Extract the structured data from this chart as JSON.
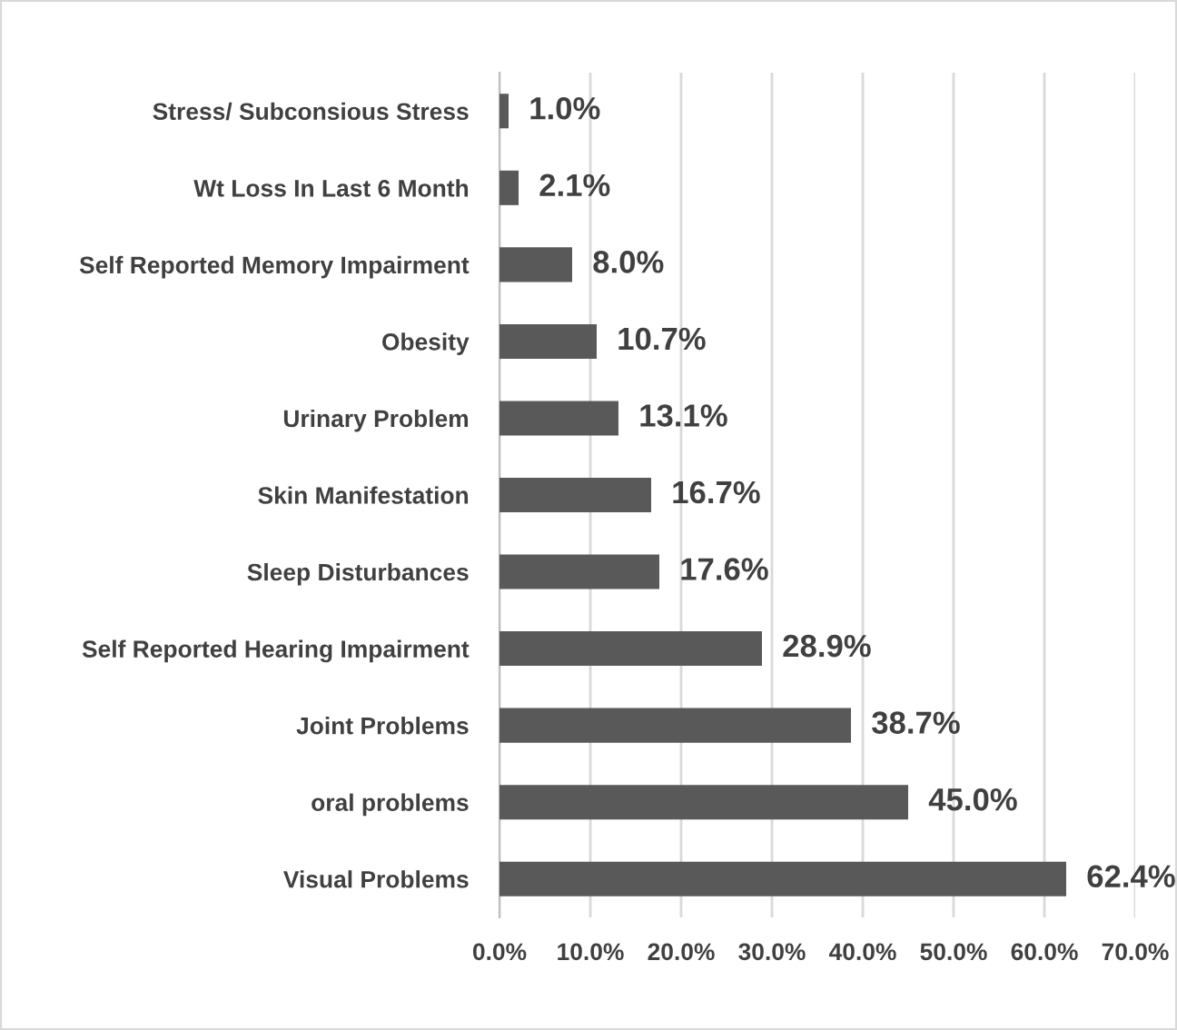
{
  "chart_data": {
    "type": "bar",
    "orientation": "horizontal",
    "categories": [
      "Stress/ Subconsious Stress",
      "Wt Loss In Last 6 Month",
      "Self Reported Memory Impairment",
      "Obesity",
      "Urinary Problem",
      "Skin Manifestation",
      "Sleep Disturbances",
      "Self Reported Hearing Impairment",
      "Joint Problems",
      "oral problems",
      "Visual Problems"
    ],
    "values": [
      1.0,
      2.1,
      8.0,
      10.7,
      13.1,
      16.7,
      17.6,
      28.9,
      38.7,
      45.0,
      62.4
    ],
    "value_labels": [
      "1.0%",
      "2.1%",
      "8.0%",
      "10.7%",
      "13.1%",
      "16.7%",
      "17.6%",
      "28.9%",
      "38.7%",
      "45.0%",
      "62.4%"
    ],
    "color": "#595959",
    "xlim": [
      0,
      70
    ],
    "xticks": [
      {
        "value": 0,
        "label": "0.0%"
      },
      {
        "value": 10,
        "label": "10.0%"
      },
      {
        "value": 20,
        "label": "20.0%"
      },
      {
        "value": 30,
        "label": "30.0%"
      },
      {
        "value": 40,
        "label": "40.0%"
      },
      {
        "value": 50,
        "label": "50.0%"
      },
      {
        "value": 60,
        "label": "60.0%"
      },
      {
        "value": 70,
        "label": "70.0%"
      }
    ],
    "grid": "x",
    "legend": false
  }
}
